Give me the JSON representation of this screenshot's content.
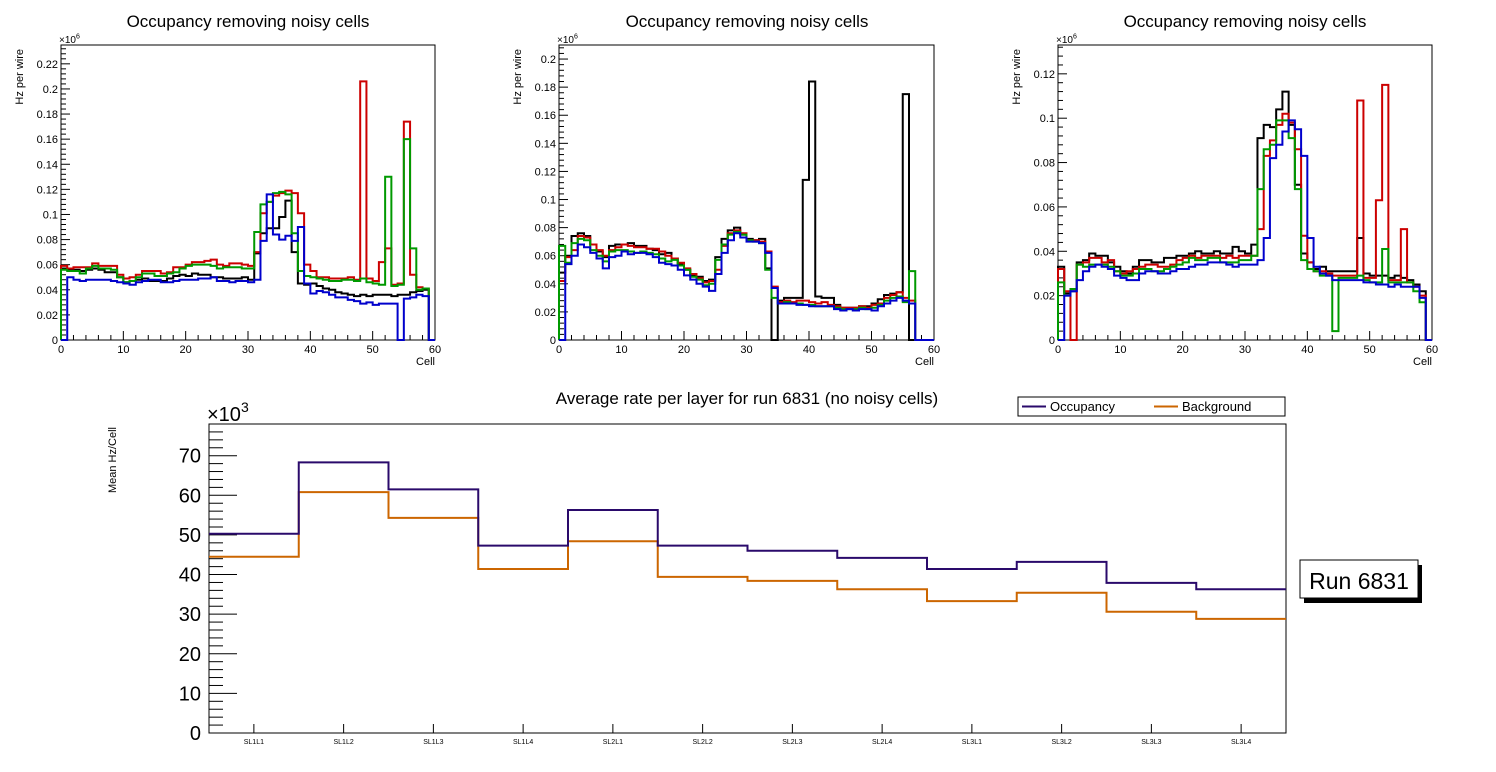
{
  "chart_data": [
    {
      "type": "histogram-step",
      "title": "Occupancy removing noisy cells",
      "xlabel": "Cell",
      "ylabel": "Hz per wire",
      "y_multiplier": "×10^6",
      "xlim": [
        0,
        60
      ],
      "ylim": [
        0,
        0.235
      ],
      "xticks": [
        0,
        10,
        20,
        30,
        40,
        50,
        60
      ],
      "yticks": [
        0,
        0.02,
        0.04,
        0.06,
        0.08,
        0.1,
        0.12,
        0.14,
        0.16,
        0.18,
        0.2,
        0.22
      ],
      "ytick_labels": [
        "0",
        "0.02",
        "0.04",
        "0.06",
        "0.08",
        "0.1",
        "0.12",
        "0.14",
        "0.16",
        "0.18",
        "0.2",
        "0.22"
      ],
      "series": [
        {
          "name": "layer-black",
          "color": "#000000",
          "values": [
            0.057,
            0.056,
            0.056,
            0.055,
            0.056,
            0.057,
            0.056,
            0.054,
            0.054,
            0.05,
            0.046,
            0.047,
            0.048,
            0.049,
            0.047,
            0.047,
            0.047,
            0.049,
            0.051,
            0.052,
            0.051,
            0.053,
            0.052,
            0.052,
            0.05,
            0.05,
            0.049,
            0.049,
            0.049,
            0.05,
            0.048,
            0.069,
            0.085,
            0.089,
            0.089,
            0.098,
            0.111,
            0.07,
            0.045,
            0.044,
            0.045,
            0.043,
            0.041,
            0.04,
            0.038,
            0.037,
            0.036,
            0.035,
            0.036,
            0.035,
            0.036,
            0.036,
            0.036,
            0.035,
            0.036,
            0.036,
            0.038,
            0.039,
            0.04,
            0
          ]
        },
        {
          "name": "layer-red",
          "color": "#cc0000",
          "values": [
            0.059,
            0.057,
            0.058,
            0.058,
            0.058,
            0.061,
            0.059,
            0.059,
            0.059,
            0.052,
            0.049,
            0.05,
            0.052,
            0.055,
            0.055,
            0.055,
            0.053,
            0.054,
            0.058,
            0.058,
            0.06,
            0.062,
            0.062,
            0.063,
            0.064,
            0.06,
            0.059,
            0.061,
            0.061,
            0.06,
            0.059,
            0.07,
            0.101,
            0.11,
            0.115,
            0.117,
            0.119,
            0.117,
            0.101,
            0.06,
            0.055,
            0.05,
            0.05,
            0.049,
            0.049,
            0.049,
            0.05,
            0.048,
            0.206,
            0.049,
            0.047,
            0.062,
            0.073,
            0.044,
            0.045,
            0.174,
            0.052,
            0.042,
            0.041,
            0
          ]
        },
        {
          "name": "layer-green",
          "color": "#009900",
          "values": [
            0.056,
            0.055,
            0.055,
            0.053,
            0.057,
            0.059,
            0.057,
            0.057,
            0.056,
            0.05,
            0.046,
            0.047,
            0.05,
            0.053,
            0.053,
            0.051,
            0.051,
            0.053,
            0.054,
            0.057,
            0.059,
            0.06,
            0.06,
            0.06,
            0.059,
            0.057,
            0.058,
            0.058,
            0.058,
            0.057,
            0.057,
            0.086,
            0.108,
            0.11,
            0.117,
            0.118,
            0.116,
            0.085,
            0.055,
            0.051,
            0.05,
            0.049,
            0.048,
            0.047,
            0.047,
            0.048,
            0.048,
            0.047,
            0.049,
            0.046,
            0.045,
            0.044,
            0.13,
            0.043,
            0.044,
            0.16,
            0.073,
            0.04,
            0.041,
            0
          ]
        },
        {
          "name": "layer-blue",
          "color": "#0000cc",
          "values": [
            0,
            0.05,
            0.048,
            0.047,
            0.048,
            0.048,
            0.048,
            0.048,
            0.047,
            0.046,
            0.045,
            0.044,
            0.046,
            0.047,
            0.048,
            0.048,
            0.046,
            0.046,
            0.047,
            0.048,
            0.048,
            0.048,
            0.049,
            0.049,
            0.05,
            0.047,
            0.047,
            0.046,
            0.047,
            0.047,
            0.046,
            0.048,
            0.079,
            0.116,
            0.084,
            0.08,
            0.083,
            0.079,
            0.09,
            0.045,
            0.037,
            0.039,
            0.038,
            0.036,
            0.034,
            0.034,
            0.032,
            0.031,
            0.029,
            0.03,
            0.028,
            0.029,
            0.029,
            0.029,
            0,
            0.033,
            0.034,
            0.036,
            0.035,
            0
          ]
        }
      ]
    },
    {
      "type": "histogram-step",
      "title": "Occupancy removing noisy cells",
      "xlabel": "Cell",
      "ylabel": "Hz per wire",
      "y_multiplier": "×10^6",
      "xlim": [
        0,
        60
      ],
      "ylim": [
        0,
        0.21
      ],
      "xticks": [
        0,
        10,
        20,
        30,
        40,
        50,
        60
      ],
      "yticks": [
        0,
        0.02,
        0.04,
        0.06,
        0.08,
        0.1,
        0.12,
        0.14,
        0.16,
        0.18,
        0.2
      ],
      "ytick_labels": [
        "0",
        "0.02",
        "0.04",
        "0.06",
        "0.08",
        "0.1",
        "0.12",
        "0.14",
        "0.16",
        "0.18",
        "0.2"
      ],
      "series": [
        {
          "name": "layer-black",
          "color": "#000000",
          "values": [
            0.048,
            0.06,
            0.074,
            0.076,
            0.074,
            0.068,
            0.063,
            0.059,
            0.067,
            0.068,
            0.068,
            0.069,
            0.067,
            0.067,
            0.065,
            0.064,
            0.061,
            0.062,
            0.058,
            0.054,
            0.05,
            0.046,
            0.045,
            0.042,
            0.043,
            0.059,
            0.072,
            0.078,
            0.08,
            0.075,
            0.072,
            0.071,
            0.072,
            0.051,
            0,
            0.028,
            0.03,
            0.03,
            0.03,
            0.114,
            0.184,
            0.031,
            0.03,
            0.03,
            0.025,
            0.023,
            0.023,
            0.023,
            0.024,
            0.024,
            0.026,
            0.029,
            0.032,
            0.033,
            0.034,
            0.175,
            0,
            0,
            0,
            0
          ]
        },
        {
          "name": "layer-red",
          "color": "#cc0000",
          "values": [
            0.042,
            0.059,
            0.064,
            0.074,
            0.073,
            0.068,
            0.064,
            0.06,
            0.064,
            0.066,
            0.068,
            0.067,
            0.066,
            0.066,
            0.065,
            0.065,
            0.063,
            0.06,
            0.058,
            0.055,
            0.051,
            0.047,
            0.044,
            0.041,
            0.042,
            0.05,
            0.067,
            0.076,
            0.078,
            0.076,
            0.071,
            0.071,
            0.07,
            0.063,
            0.038,
            0.027,
            0.028,
            0.027,
            0.028,
            0.028,
            0.027,
            0.026,
            0.027,
            0.025,
            0.024,
            0.023,
            0.023,
            0.023,
            0.024,
            0.023,
            0.025,
            0.026,
            0.03,
            0.032,
            0.034,
            0.03,
            0.028,
            0,
            0,
            0
          ]
        },
        {
          "name": "layer-green",
          "color": "#009900",
          "values": [
            0.067,
            0.055,
            0.069,
            0.072,
            0.071,
            0.064,
            0.06,
            0.056,
            0.063,
            0.064,
            0.064,
            0.063,
            0.062,
            0.063,
            0.062,
            0.061,
            0.058,
            0.056,
            0.057,
            0.053,
            0.05,
            0.045,
            0.043,
            0.039,
            0.04,
            0.057,
            0.068,
            0.075,
            0.077,
            0.075,
            0.071,
            0.07,
            0.069,
            0.05,
            0.03,
            0.026,
            0.027,
            0.026,
            0.026,
            0.025,
            0.025,
            0.024,
            0.024,
            0.024,
            0.023,
            0.022,
            0.022,
            0.022,
            0.023,
            0.022,
            0.023,
            0.025,
            0.028,
            0.03,
            0.031,
            0.027,
            0.049,
            0,
            0,
            0
          ]
        },
        {
          "name": "layer-blue",
          "color": "#0000cc",
          "values": [
            0,
            0.054,
            0.06,
            0.068,
            0.066,
            0.062,
            0.058,
            0.051,
            0.059,
            0.06,
            0.063,
            0.061,
            0.062,
            0.062,
            0.061,
            0.059,
            0.055,
            0.054,
            0.053,
            0.05,
            0.046,
            0.043,
            0.04,
            0.038,
            0.035,
            0.047,
            0.062,
            0.071,
            0.076,
            0.073,
            0.07,
            0.07,
            0.069,
            0.062,
            0.037,
            0.026,
            0.026,
            0.026,
            0.025,
            0.025,
            0.024,
            0.024,
            0.024,
            0.024,
            0.022,
            0.021,
            0.022,
            0.021,
            0.022,
            0.022,
            0.021,
            0.024,
            0.026,
            0.028,
            0.03,
            0.028,
            0.026,
            0,
            0,
            0
          ]
        }
      ]
    },
    {
      "type": "histogram-step",
      "title": "Occupancy removing noisy cells",
      "xlabel": "Cell",
      "ylabel": "Hz per wire",
      "y_multiplier": "×10^6",
      "xlim": [
        0,
        60
      ],
      "ylim": [
        0,
        0.133
      ],
      "xticks": [
        0,
        10,
        20,
        30,
        40,
        50,
        60
      ],
      "yticks": [
        0,
        0.02,
        0.04,
        0.06,
        0.08,
        0.1,
        0.12
      ],
      "ytick_labels": [
        "0",
        "0.02",
        "0.04",
        "0.06",
        "0.08",
        "0.1",
        "0.12"
      ],
      "series": [
        {
          "name": "layer-black",
          "color": "#000000",
          "values": [
            0.033,
            0.021,
            0.022,
            0.035,
            0.036,
            0.039,
            0.038,
            0.038,
            0.035,
            0.033,
            0.031,
            0.03,
            0.033,
            0.036,
            0.036,
            0.035,
            0.035,
            0.037,
            0.037,
            0.038,
            0.038,
            0.039,
            0.04,
            0.039,
            0.039,
            0.04,
            0.039,
            0.039,
            0.042,
            0.04,
            0.039,
            0.043,
            0.091,
            0.097,
            0.096,
            0.104,
            0.112,
            0.097,
            0.07,
            0.039,
            0.035,
            0.032,
            0.033,
            0.031,
            0.031,
            0.031,
            0.031,
            0.031,
            0.046,
            0.03,
            0.029,
            0.029,
            0.029,
            0.028,
            0.029,
            0.028,
            0.027,
            0.025,
            0.022,
            0
          ]
        },
        {
          "name": "layer-red",
          "color": "#cc0000",
          "values": [
            0.032,
            0.022,
            0,
            0.034,
            0.035,
            0.037,
            0.037,
            0.035,
            0.036,
            0.031,
            0.03,
            0.031,
            0.032,
            0.033,
            0.034,
            0.034,
            0.033,
            0.033,
            0.034,
            0.036,
            0.037,
            0.038,
            0.037,
            0.038,
            0.038,
            0.038,
            0.037,
            0.038,
            0.037,
            0.038,
            0.038,
            0.038,
            0.05,
            0.083,
            0.09,
            0.097,
            0.102,
            0.098,
            0.086,
            0.047,
            0.035,
            0.031,
            0.031,
            0.03,
            0.029,
            0.029,
            0.029,
            0.029,
            0.108,
            0.028,
            0.028,
            0.063,
            0.115,
            0.027,
            0.027,
            0.05,
            0.026,
            0.024,
            0.02,
            0
          ]
        },
        {
          "name": "layer-green",
          "color": "#009900",
          "values": [
            0.026,
            0.02,
            0.023,
            0.034,
            0.033,
            0.034,
            0.034,
            0.034,
            0.033,
            0.031,
            0.029,
            0.029,
            0.03,
            0.032,
            0.032,
            0.031,
            0.031,
            0.032,
            0.033,
            0.034,
            0.035,
            0.037,
            0.036,
            0.036,
            0.037,
            0.037,
            0.035,
            0.035,
            0.035,
            0.036,
            0.036,
            0.038,
            0.068,
            0.086,
            0.088,
            0.099,
            0.099,
            0.091,
            0.068,
            0.036,
            0.032,
            0.031,
            0.029,
            0.029,
            0.004,
            0.028,
            0.028,
            0.028,
            0.029,
            0.027,
            0.026,
            0.026,
            0.041,
            0.026,
            0.026,
            0.026,
            0.026,
            0.022,
            0.017,
            0
          ]
        },
        {
          "name": "layer-blue",
          "color": "#0000cc",
          "values": [
            0,
            0.02,
            0.022,
            0.027,
            0.031,
            0.033,
            0.034,
            0.033,
            0.032,
            0.029,
            0.028,
            0.027,
            0.027,
            0.03,
            0.031,
            0.031,
            0.03,
            0.03,
            0.031,
            0.032,
            0.032,
            0.033,
            0.034,
            0.034,
            0.035,
            0.035,
            0.035,
            0.034,
            0.033,
            0.034,
            0.034,
            0.034,
            0.036,
            0.046,
            0.082,
            0.088,
            0.094,
            0.099,
            0.095,
            0.083,
            0.046,
            0.033,
            0.03,
            0.029,
            0.027,
            0.027,
            0.027,
            0.027,
            0.027,
            0.026,
            0.026,
            0.025,
            0.025,
            0.024,
            0.025,
            0.024,
            0.024,
            0.024,
            0.019,
            0
          ]
        }
      ]
    },
    {
      "type": "line-step",
      "title": "Average rate per layer for run 6831 (no noisy cells)",
      "xlabel": "",
      "ylabel": "Mean Hz/Cell",
      "y_multiplier": "×10^3",
      "categories": [
        "SL1L1",
        "SL1L2",
        "SL1L3",
        "SL1L4",
        "SL2L1",
        "SL2L2",
        "SL2L3",
        "SL2L4",
        "SL3L1",
        "SL3L2",
        "SL3L3",
        "SL3L4"
      ],
      "ylim": [
        0,
        78
      ],
      "yticks": [
        0,
        10,
        20,
        30,
        40,
        50,
        60,
        70
      ],
      "ytick_labels": [
        "0",
        "10",
        "20",
        "30",
        "40",
        "50",
        "60",
        "70"
      ],
      "legend_position": "top-right",
      "series": [
        {
          "name": "Occupancy",
          "color": "#2a0a6b",
          "values": [
            50.3,
            68.3,
            61.5,
            47.3,
            56.3,
            47.3,
            46.0,
            44.2,
            41.4,
            43.2,
            37.9,
            36.3
          ]
        },
        {
          "name": "Background",
          "color": "#cc6600",
          "values": [
            44.5,
            60.8,
            54.3,
            41.4,
            48.4,
            39.4,
            38.4,
            36.3,
            33.3,
            35.4,
            30.6,
            28.8
          ]
        }
      ],
      "annotation": "Run 6831"
    }
  ]
}
